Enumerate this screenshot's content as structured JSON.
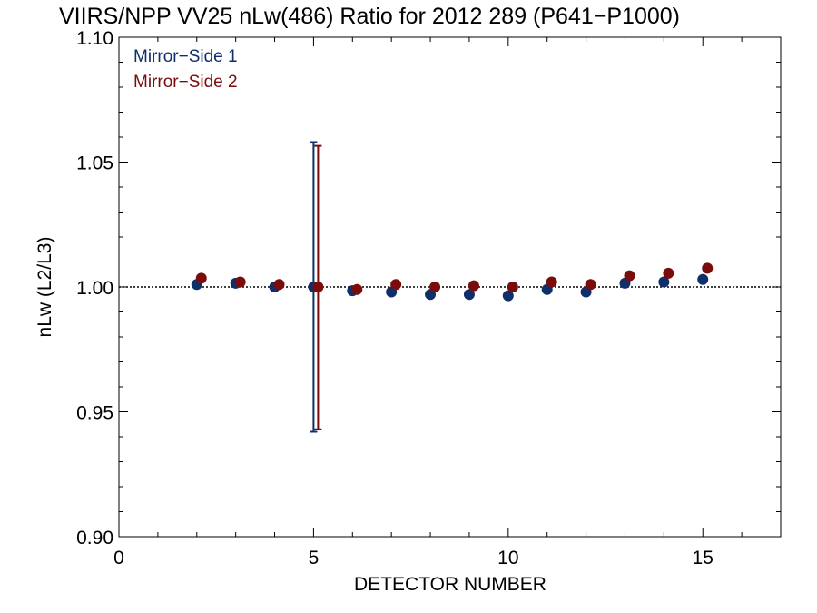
{
  "chart_data": {
    "type": "scatter",
    "title": "VIIRS/NPP VV25 nLw(486) Ratio for 2012 289 (P641−P1000)",
    "xlabel": "DETECTOR NUMBER",
    "ylabel": "nLw (L2/L3)",
    "xlim": [
      0,
      17
    ],
    "ylim": [
      0.9,
      1.1
    ],
    "x_ticks": [
      0,
      5,
      10,
      15
    ],
    "x_tick_labels": [
      "0",
      "5",
      "10",
      "15"
    ],
    "y_ticks": [
      0.9,
      0.95,
      1.0,
      1.05,
      1.1
    ],
    "y_tick_labels": [
      "0.90",
      "0.95",
      "1.00",
      "1.05",
      "1.10"
    ],
    "reference_line": 1.0,
    "legend_position": "top-left",
    "grid": false,
    "series": [
      {
        "name": "Mirror−Side 1",
        "color": "#0f2f6b",
        "x": [
          2,
          3,
          4,
          5,
          6,
          7,
          8,
          9,
          10,
          11,
          12,
          13,
          14,
          15
        ],
        "y": [
          1.001,
          1.0015,
          1.0,
          1.0,
          0.9985,
          0.998,
          0.997,
          0.997,
          0.9965,
          0.999,
          0.998,
          1.0015,
          1.002,
          1.003
        ],
        "error_bars": [
          {
            "x": 5,
            "low": 0.942,
            "high": 1.058
          }
        ]
      },
      {
        "name": "Mirror−Side 2",
        "color": "#7a0c0c",
        "x": [
          2,
          3,
          4,
          5,
          6,
          7,
          8,
          9,
          10,
          11,
          12,
          13,
          14,
          15
        ],
        "y": [
          1.0035,
          1.002,
          1.001,
          1.0,
          0.999,
          1.001,
          1.0,
          1.0005,
          1.0,
          1.002,
          1.001,
          1.0045,
          1.0055,
          1.0075
        ],
        "error_bars": [
          {
            "x": 5,
            "low": 0.943,
            "high": 1.0565
          }
        ]
      }
    ]
  }
}
